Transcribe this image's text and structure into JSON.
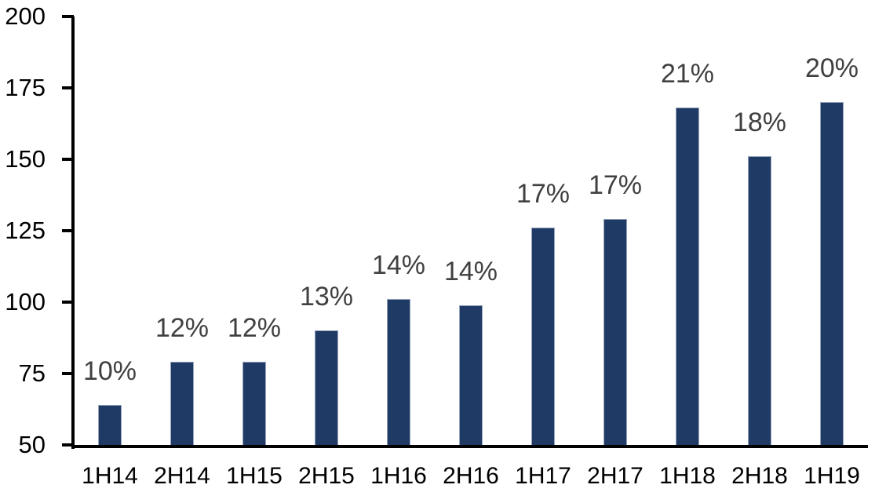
{
  "chart_data": {
    "type": "bar",
    "title": "",
    "xlabel": "",
    "ylabel": "",
    "categories": [
      "1H14",
      "2H14",
      "1H15",
      "2H15",
      "1H16",
      "2H16",
      "1H17",
      "2H17",
      "1H18",
      "2H18",
      "1H19"
    ],
    "values": [
      64,
      79,
      79,
      90,
      101,
      99,
      126,
      129,
      168,
      151,
      170
    ],
    "bar_labels": [
      "10%",
      "12%",
      "12%",
      "13%",
      "14%",
      "14%",
      "17%",
      "17%",
      "21%",
      "18%",
      "20%"
    ],
    "ylim": [
      50,
      200
    ],
    "yticks": [
      50,
      75,
      100,
      125,
      150,
      175,
      200
    ],
    "grid": false,
    "legend": "none",
    "colors": {
      "bar_fill": "#1F3A64",
      "bar_edge": "#97A5BC",
      "data_label": "#404040",
      "axis_text": "#000000",
      "axis_line": "#000000",
      "background": "#FFFFFF"
    }
  }
}
